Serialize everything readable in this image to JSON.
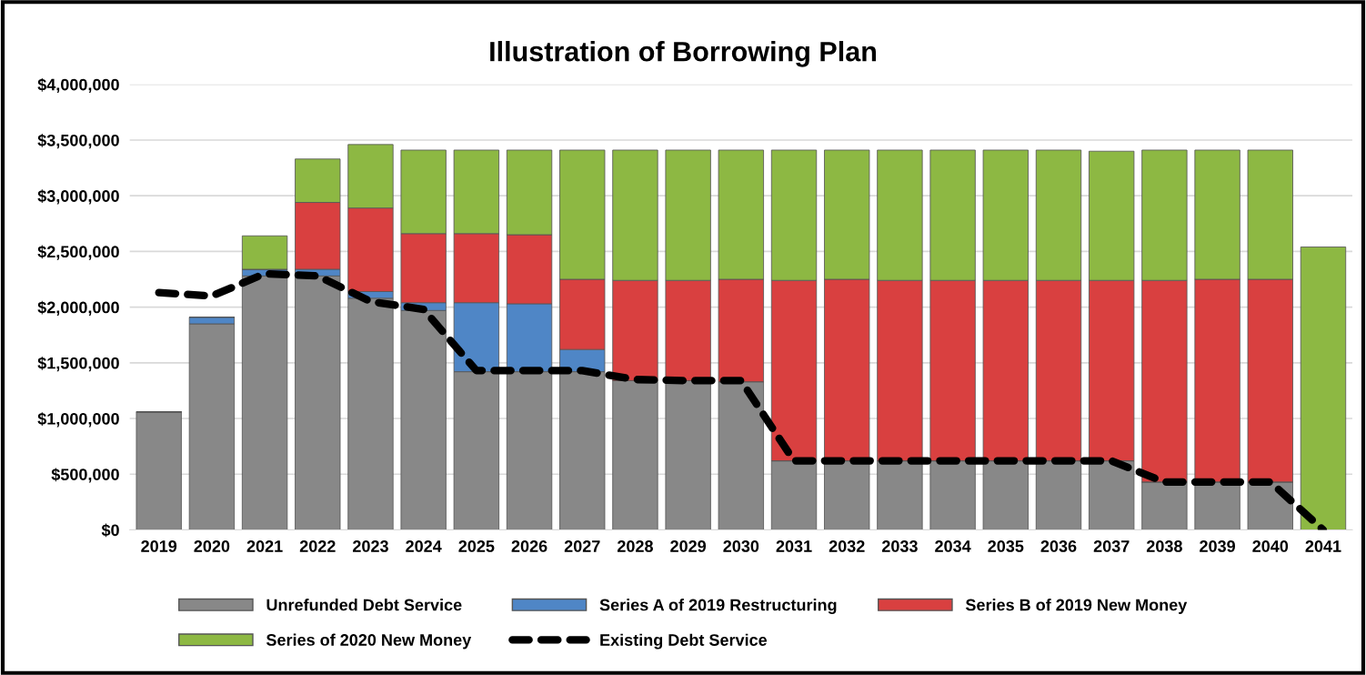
{
  "chart_data": {
    "type": "bar",
    "title": "Illustration of Borrowing Plan",
    "stacked": true,
    "grid": "y",
    "legend": "bottom",
    "line_style": "dashed",
    "marker": "none",
    "categories": [
      "2019",
      "2020",
      "2021",
      "2022",
      "2023",
      "2024",
      "2025",
      "2026",
      "2027",
      "2028",
      "2029",
      "2030",
      "2031",
      "2032",
      "2033",
      "2034",
      "2035",
      "2036",
      "2037",
      "2038",
      "2039",
      "2040",
      "2041"
    ],
    "ylim": [
      0,
      4000000
    ],
    "yticks": [
      {
        "value": 0,
        "label": "$0"
      },
      {
        "value": 500000,
        "label": "$500,000"
      },
      {
        "value": 1000000,
        "label": "$1,000,000"
      },
      {
        "value": 1500000,
        "label": "$1,500,000"
      },
      {
        "value": 2000000,
        "label": "$2,000,000"
      },
      {
        "value": 2500000,
        "label": "$2,500,000"
      },
      {
        "value": 3000000,
        "label": "$3,000,000"
      },
      {
        "value": 3500000,
        "label": "$3,500,000"
      },
      {
        "value": 4000000,
        "label": "$4,000,000"
      }
    ],
    "series": [
      {
        "name": "Unrefunded Debt Service",
        "color": "#888888",
        "values": [
          1060000,
          1850000,
          2280000,
          2280000,
          2080000,
          1970000,
          1420000,
          1420000,
          1420000,
          1340000,
          1340000,
          1330000,
          620000,
          620000,
          620000,
          620000,
          620000,
          620000,
          620000,
          430000,
          430000,
          430000,
          null
        ]
      },
      {
        "name": "Series A of 2019 Restructuring",
        "color": "#4f86c6",
        "values": [
          null,
          60000,
          60000,
          60000,
          60000,
          70000,
          620000,
          610000,
          200000,
          null,
          null,
          null,
          null,
          null,
          null,
          null,
          null,
          null,
          null,
          null,
          null,
          null,
          null
        ]
      },
      {
        "name": "Series B of 2019 New Money",
        "color": "#d94040",
        "values": [
          null,
          null,
          null,
          600000,
          750000,
          620000,
          620000,
          620000,
          630000,
          900000,
          900000,
          920000,
          1620000,
          1630000,
          1620000,
          1620000,
          1620000,
          1620000,
          1620000,
          1810000,
          1820000,
          1820000,
          null
        ]
      },
      {
        "name": "Series of 2020 New Money",
        "color": "#8db843",
        "values": [
          null,
          null,
          300000,
          390000,
          570000,
          750000,
          750000,
          760000,
          1160000,
          1170000,
          1170000,
          1160000,
          1170000,
          1160000,
          1170000,
          1170000,
          1170000,
          1170000,
          1160000,
          1170000,
          1160000,
          1160000,
          2540000
        ]
      },
      {
        "name": "Existing Debt Service",
        "type": "line",
        "color": "#000000",
        "values": [
          2130000,
          2100000,
          2300000,
          2280000,
          2050000,
          1980000,
          1430000,
          1430000,
          1430000,
          1350000,
          1340000,
          1340000,
          620000,
          620000,
          620000,
          620000,
          620000,
          620000,
          620000,
          430000,
          430000,
          430000,
          0
        ]
      }
    ]
  }
}
